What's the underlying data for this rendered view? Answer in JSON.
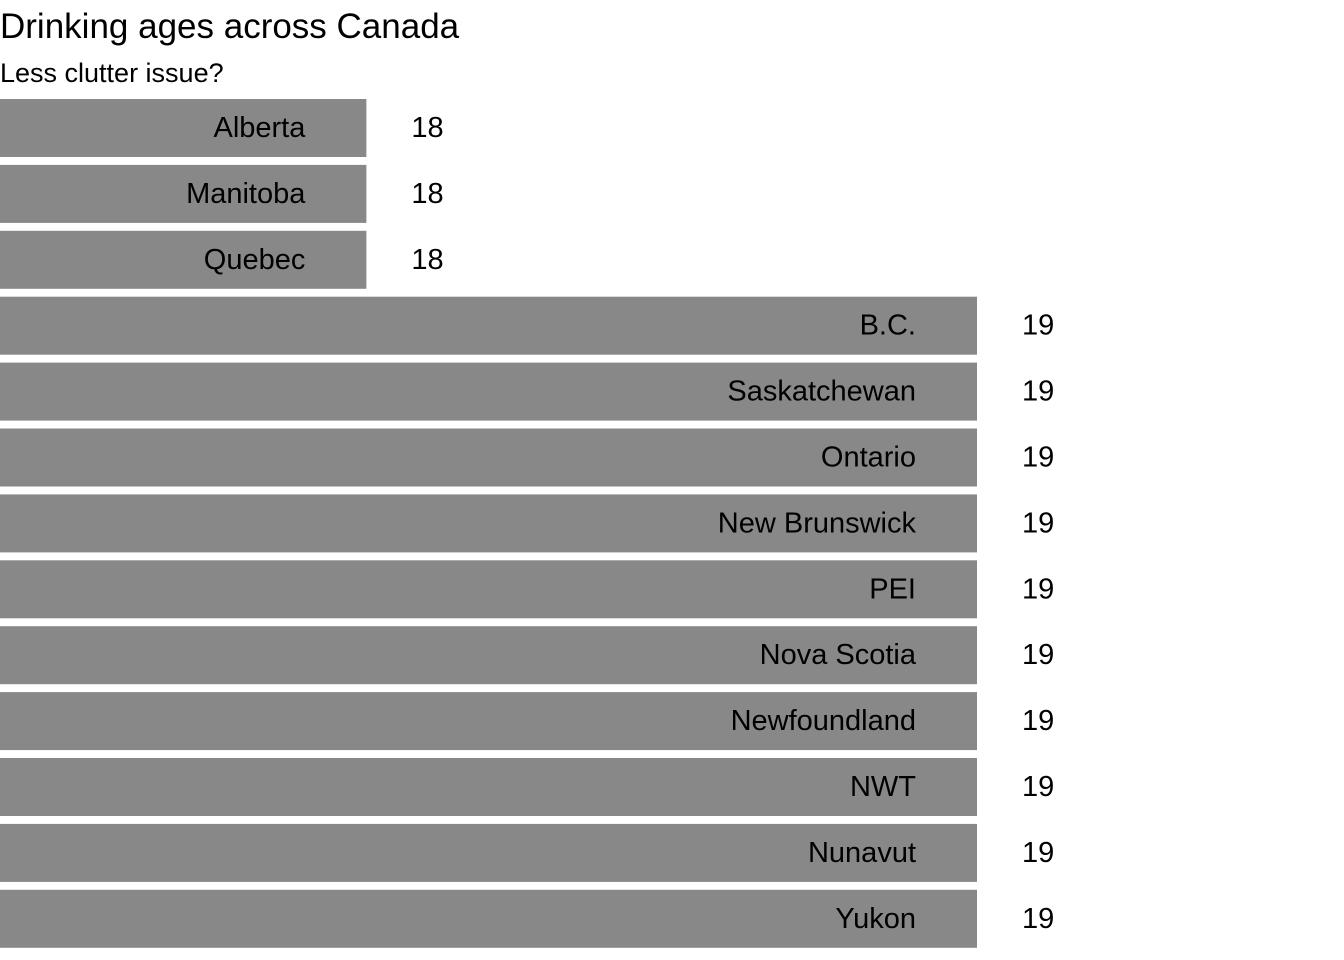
{
  "chart_data": {
    "type": "bar",
    "orientation": "horizontal",
    "title": "Drinking ages across Canada",
    "subtitle": "Less clutter issue?",
    "categories": [
      "Alberta",
      "Manitoba",
      "Quebec",
      "B.C.",
      "Saskatchewan",
      "Ontario",
      "New Brunswick",
      "PEI",
      "Nova Scotia",
      "Newfoundland",
      "NWT",
      "Nunavut",
      "Yukon"
    ],
    "values": [
      18,
      18,
      18,
      19,
      19,
      19,
      19,
      19,
      19,
      19,
      19,
      19,
      19
    ],
    "xlim": [
      17.4,
      19
    ],
    "bar_color": "#888888",
    "label_placement": "inside-bar-end",
    "value_labels": "outside-bar-end",
    "grid": false,
    "axes_visible": false
  }
}
